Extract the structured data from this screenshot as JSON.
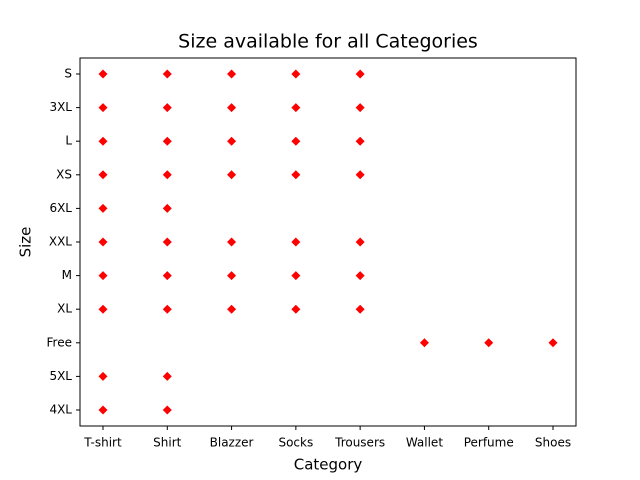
{
  "chart_data": {
    "type": "scatter",
    "title": "Size available for all Categories",
    "xlabel": "Category",
    "ylabel": "Size",
    "categories": [
      "T-shirt",
      "Shirt",
      "Blazzer",
      "Socks",
      "Trousers",
      "Wallet",
      "Perfume",
      "Shoes"
    ],
    "ycategories": [
      "4XL",
      "5XL",
      "Free",
      "XL",
      "M",
      "XXL",
      "6XL",
      "XS",
      "L",
      "3XL",
      "S"
    ],
    "marker": "diamond",
    "series": [
      {
        "color": "#ff0000",
        "x": [
          "T-shirt",
          "T-shirt",
          "T-shirt",
          "T-shirt",
          "T-shirt",
          "T-shirt",
          "T-shirt",
          "T-shirt",
          "T-shirt",
          "T-shirt",
          "Shirt",
          "Shirt",
          "Shirt",
          "Shirt",
          "Shirt",
          "Shirt",
          "Shirt",
          "Shirt",
          "Shirt",
          "Shirt",
          "Blazzer",
          "Blazzer",
          "Blazzer",
          "Blazzer",
          "Blazzer",
          "Blazzer",
          "Blazzer",
          "Socks",
          "Socks",
          "Socks",
          "Socks",
          "Socks",
          "Socks",
          "Socks",
          "Trousers",
          "Trousers",
          "Trousers",
          "Trousers",
          "Trousers",
          "Trousers",
          "Trousers",
          "Wallet",
          "Perfume",
          "Shoes"
        ],
        "y": [
          "S",
          "3XL",
          "L",
          "XS",
          "6XL",
          "XXL",
          "M",
          "XL",
          "5XL",
          "4XL",
          "S",
          "3XL",
          "L",
          "XS",
          "6XL",
          "XXL",
          "M",
          "XL",
          "5XL",
          "4XL",
          "S",
          "3XL",
          "L",
          "XS",
          "XXL",
          "M",
          "XL",
          "S",
          "3XL",
          "L",
          "XS",
          "XXL",
          "M",
          "XL",
          "S",
          "3XL",
          "L",
          "XS",
          "XXL",
          "M",
          "XL",
          "Free",
          "Free",
          "Free"
        ]
      }
    ]
  }
}
